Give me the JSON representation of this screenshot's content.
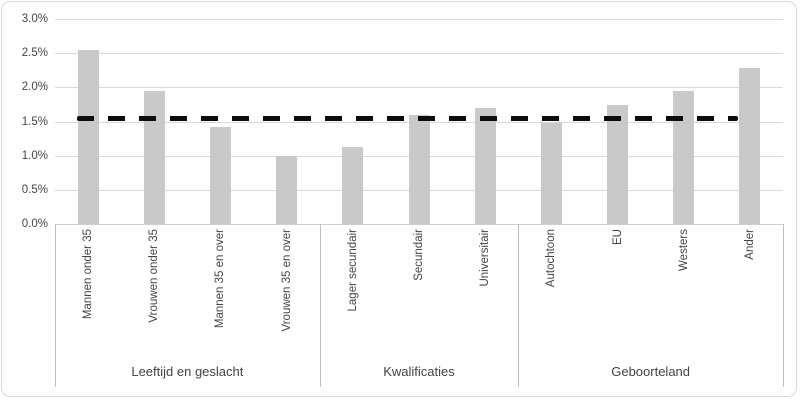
{
  "chart_data": {
    "type": "bar",
    "title": "",
    "xlabel": "",
    "ylabel": "",
    "legend": null,
    "gridlines": true,
    "y_axis": {
      "min": 0,
      "max": 3.0,
      "step": 0.5,
      "tick_labels": [
        "0.0%",
        "0.5%",
        "1.0%",
        "1.5%",
        "2.0%",
        "2.5%",
        "3.0%"
      ]
    },
    "groups": [
      {
        "label": "Leeftijd en geslacht",
        "categories": [
          "Mannen onder 35",
          "Vrouwen onder 35",
          "Mannen 35 en over",
          "Vrouwen 35 en over"
        ],
        "values": [
          2.55,
          1.95,
          1.42,
          1.0
        ]
      },
      {
        "label": "Kwalificaties",
        "categories": [
          "Lager secundair",
          "Secundair",
          "Universitair"
        ],
        "values": [
          1.13,
          1.6,
          1.7
        ]
      },
      {
        "label": "Geboorteland",
        "categories": [
          "Autochtoon",
          "EU",
          "Westers",
          "Ander"
        ],
        "values": [
          1.48,
          1.74,
          1.95,
          2.28
        ]
      }
    ],
    "reference_line": {
      "value": 1.55,
      "style": "dashed",
      "color": "#0d0d0d"
    },
    "colors": {
      "bar": "#c9c9c9",
      "gridline": "#d9d9d9",
      "axis_text": "#444444",
      "divider": "#bfbfbf",
      "frame_border": "#d8d8d8",
      "background": "#ffffff"
    }
  }
}
